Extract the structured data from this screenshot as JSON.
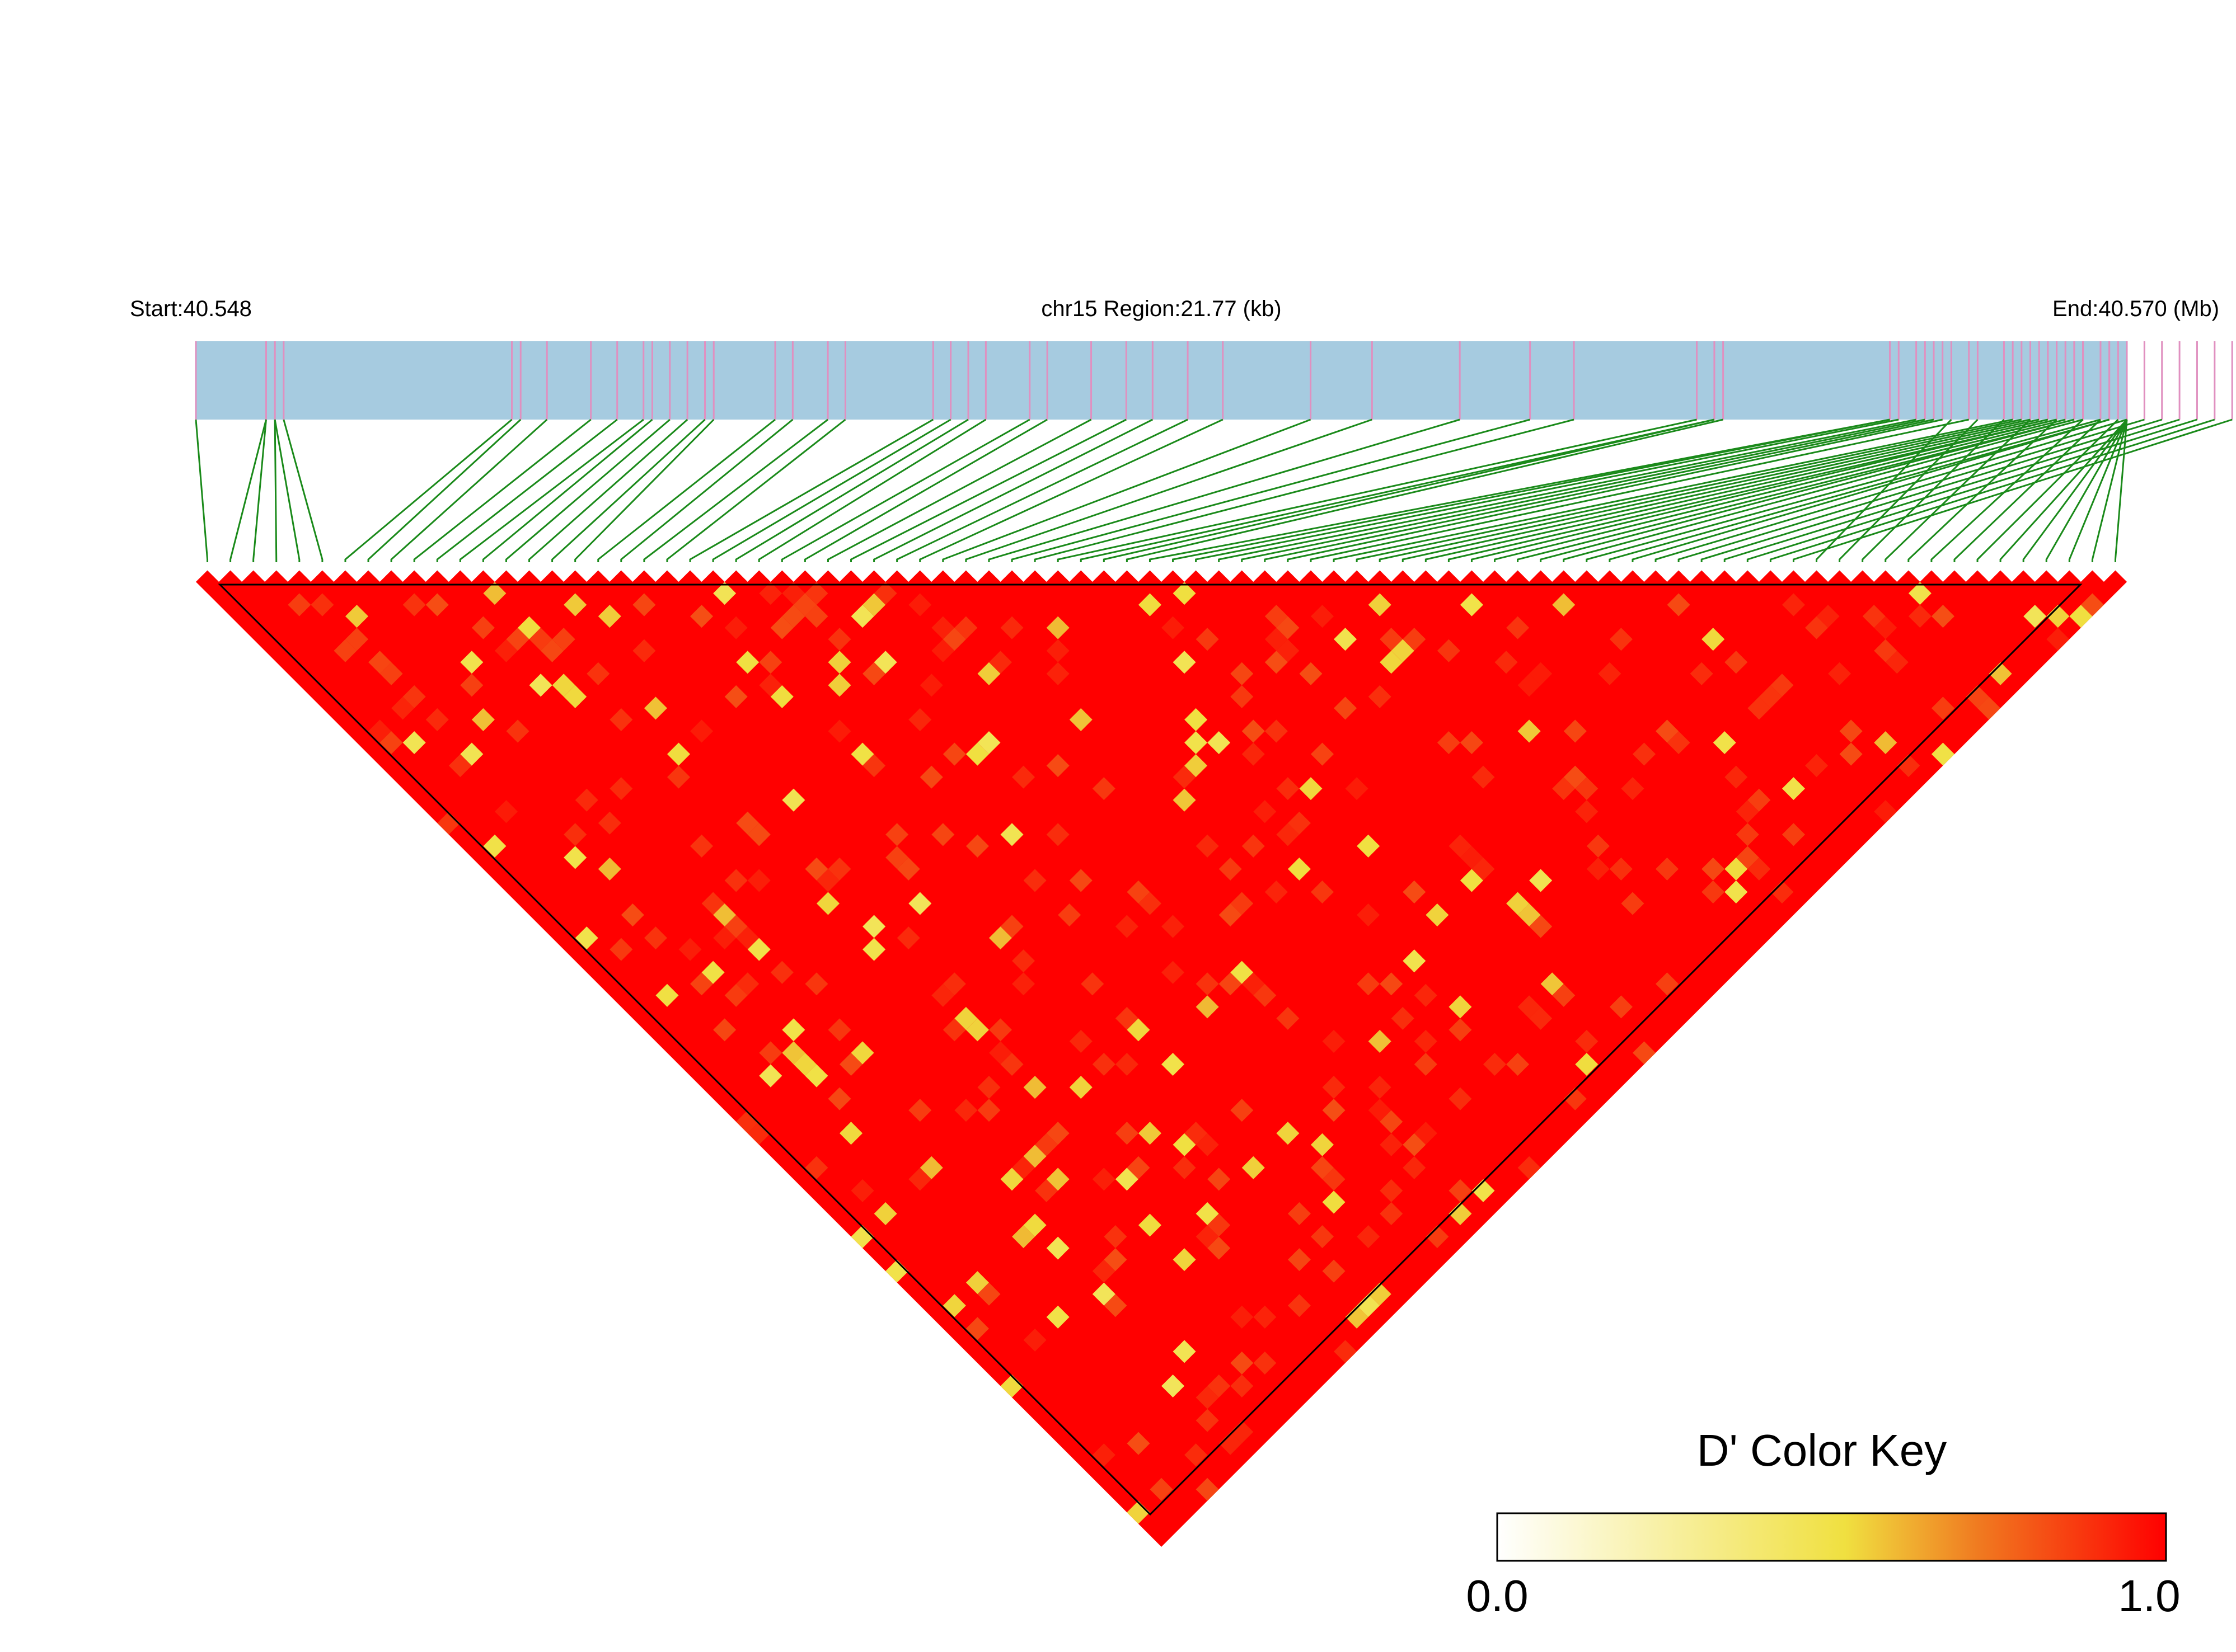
{
  "header": {
    "start_label": "Start:40.548",
    "region_label": "chr15 Region:21.77 (kb)",
    "end_label": "End:40.570 (Mb)"
  },
  "color_key": {
    "title": "D' Color Key",
    "min_label": "0.0",
    "max_label": "1.0",
    "min": 0.0,
    "max": 1.0
  },
  "colors": {
    "track_fill": "#a6cbe0",
    "snp_tick": "#e090c0",
    "connector": "#1a8a1a",
    "high_ld": "#ff0000",
    "mid_ld": "#f0e040",
    "low_ld": "#ffffff"
  },
  "chart_data": {
    "type": "heatmap",
    "title": "",
    "chromosome": "chr15",
    "region_start_mb": 40.548,
    "region_end_mb": 40.57,
    "region_size_kb": 21.77,
    "metric": "D'",
    "value_range": [
      0.0,
      1.0
    ],
    "snp_count": 84,
    "snp_positions_mb": [
      40.548,
      40.5488,
      40.5488,
      40.5489,
      40.5489,
      40.549,
      40.5516,
      40.5517,
      40.552,
      40.5525,
      40.5528,
      40.5531,
      40.5532,
      40.5534,
      40.5536,
      40.5538,
      40.5539,
      40.5546,
      40.5548,
      40.5552,
      40.5554,
      40.5564,
      40.5566,
      40.5568,
      40.557,
      40.5575,
      40.5577,
      40.5582,
      40.5586,
      40.5589,
      40.5593,
      40.5597,
      40.5607,
      40.5614,
      40.5624,
      40.5632,
      40.5637,
      40.5651,
      40.5653,
      40.5653,
      40.5654,
      40.5673,
      40.5673,
      40.5674,
      40.5676,
      40.5677,
      40.5678,
      40.5679,
      40.5682,
      40.5687,
      40.5688,
      40.5689,
      40.569,
      40.5691,
      40.5692,
      40.5692,
      40.5693,
      40.5694,
      40.5694,
      40.5695,
      40.5697,
      40.5698,
      40.5698,
      40.57,
      40.5702,
      40.5704,
      40.5706,
      40.5708,
      40.571,
      40.5712,
      40.568,
      40.5683,
      40.5686,
      40.5689,
      40.5692,
      40.5695,
      40.5697,
      40.5699,
      40.57,
      40.57,
      40.57,
      40.57,
      40.57,
      40.57
    ],
    "pairwise_dprime_summary": "Predominantly complete LD (D' ≈ 1.0); scattered pairs with reduced D' (≈0.3–0.8)"
  }
}
